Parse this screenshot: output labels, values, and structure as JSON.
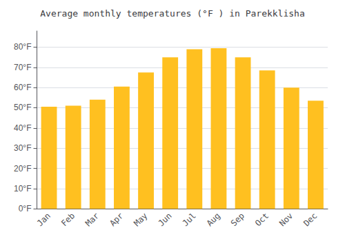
{
  "chart_data": {
    "type": "bar",
    "title": "Average monthly temperatures (°F ) in Parekklisha",
    "categories": [
      "Jan",
      "Feb",
      "Mar",
      "Apr",
      "May",
      "Jun",
      "Jul",
      "Aug",
      "Sep",
      "Oct",
      "Nov",
      "Dec"
    ],
    "values": [
      50.5,
      51.0,
      54.0,
      60.5,
      67.5,
      75.0,
      79.0,
      79.5,
      75.0,
      68.5,
      60.0,
      53.5
    ],
    "color": "#FFC020",
    "ylim": [
      0,
      88
    ],
    "yticks": [
      {
        "value": 0,
        "label": "0°F"
      },
      {
        "value": 10,
        "label": "10°F"
      },
      {
        "value": 20,
        "label": "20°F"
      },
      {
        "value": 30,
        "label": "30°F"
      },
      {
        "value": 40,
        "label": "40°F"
      },
      {
        "value": 50,
        "label": "50°F"
      },
      {
        "value": 60,
        "label": "60°F"
      },
      {
        "value": 70,
        "label": "70°F"
      },
      {
        "value": 80,
        "label": "80°F"
      }
    ],
    "grid": true
  }
}
